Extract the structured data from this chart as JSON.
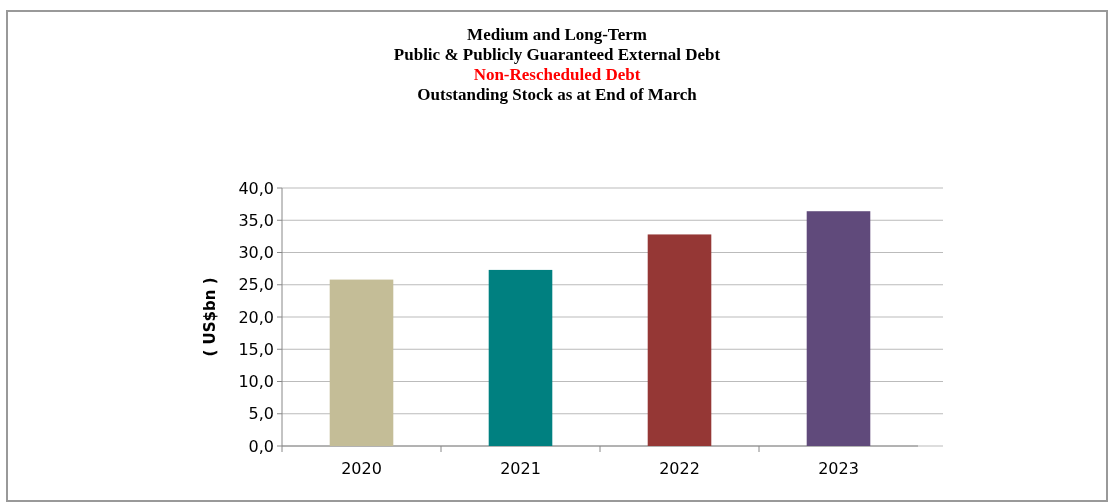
{
  "chart_data": {
    "type": "bar",
    "title": "Medium and Long-Term\nPublic & Publicly Guaranteed External Debt",
    "subtitle": "Non-Rescheduled Debt",
    "annotations": [
      "Outstanding Stock as at End of March"
    ],
    "ylabel": "( US$bn )",
    "categories": [
      "2020",
      "2021",
      "2022",
      "2023"
    ],
    "values": [
      25.8,
      27.3,
      32.8,
      36.4
    ],
    "colors": [
      "#c4bd97",
      "#008080",
      "#953735",
      "#604a7b"
    ],
    "ylim": [
      0,
      40
    ],
    "yticks": [
      {
        "value": 0,
        "label": "0,0"
      },
      {
        "value": 5,
        "label": "5,0"
      },
      {
        "value": 10,
        "label": "10,0"
      },
      {
        "value": 15,
        "label": "15,0"
      },
      {
        "value": 20,
        "label": "20,0"
      },
      {
        "value": 25,
        "label": "25,0"
      },
      {
        "value": 30,
        "label": "30,0"
      },
      {
        "value": 35,
        "label": "35,0"
      },
      {
        "value": 40,
        "label": "40,0"
      }
    ],
    "grid": "y"
  }
}
